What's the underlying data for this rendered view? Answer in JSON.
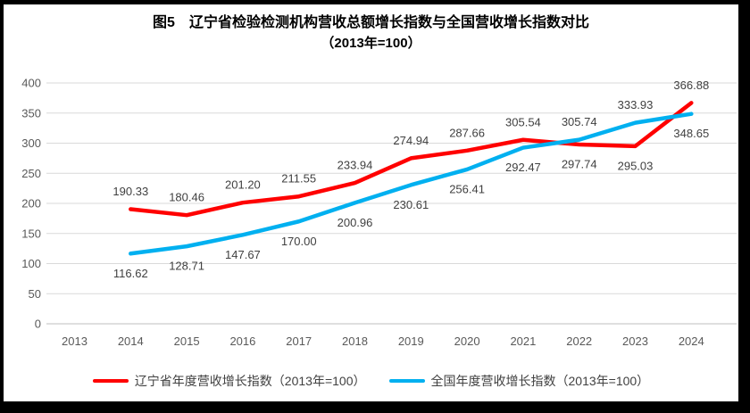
{
  "title": {
    "line1": "图5　辽宁省检验检测机构营收总额增长指数与全国营收增长指数对比",
    "line2": "（2013年=100）"
  },
  "chart_data": {
    "type": "line",
    "title": "图5　辽宁省检验检测机构营收总额增长指数与全国营收增长指数对比（2013年=100）",
    "x": [
      2013,
      2014,
      2015,
      2016,
      2017,
      2018,
      2019,
      2020,
      2021,
      2022,
      2023,
      2024
    ],
    "ylim": [
      0,
      400
    ],
    "ytick_step": 50,
    "grid": true,
    "legend_position": "bottom",
    "series": [
      {
        "name": "辽宁省年度营收增长指数（2013年=100）",
        "color": "#FF0000",
        "start_index": 1,
        "values": [
          190.33,
          180.46,
          201.2,
          211.55,
          233.94,
          274.94,
          287.66,
          305.54,
          297.74,
          295.03,
          366.88
        ],
        "label_side": [
          "above",
          "above",
          "above",
          "above",
          "above",
          "above",
          "above",
          "above",
          "below",
          "below",
          "above"
        ]
      },
      {
        "name": "全国年度营收增长指数（2013年=100）",
        "color": "#00B0F0",
        "start_index": 1,
        "values": [
          116.62,
          128.71,
          147.67,
          170.0,
          200.96,
          230.61,
          256.41,
          292.47,
          305.74,
          333.93,
          348.65
        ],
        "label_side": [
          "below",
          "below",
          "below",
          "below",
          "below",
          "below",
          "below",
          "below",
          "above",
          "above",
          "below"
        ]
      }
    ],
    "colors": {
      "gridline": "#D9D9D9",
      "axis_line": "#BFBFBF",
      "tick_label": "#595959",
      "data_label": "#404040"
    }
  }
}
